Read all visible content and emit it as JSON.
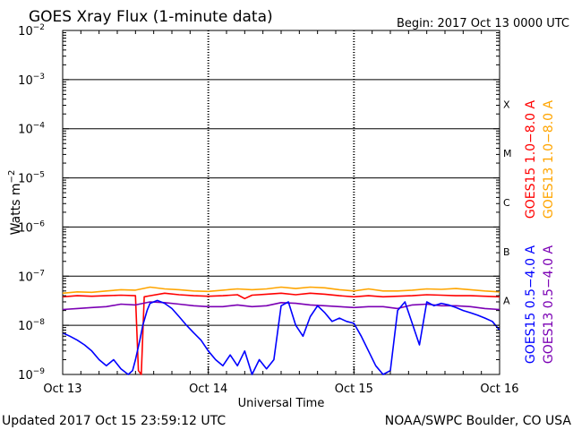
{
  "chart_data": {
    "type": "line",
    "title": "GOES Xray Flux (1-minute data)",
    "begin_label": "Begin:  2017 Oct 13 0000 UTC",
    "ylabel_base": "Watts m",
    "ylabel_exp": "−2",
    "xlabel": "Universal Time",
    "updated": "Updated 2017 Oct 15 23:59:12 UTC",
    "credit": "NOAA/SWPC Boulder, CO USA",
    "yscale": "log",
    "ylim": [
      1e-09,
      0.01
    ],
    "xlim_days": [
      0,
      3
    ],
    "grid": true,
    "x_ticks": [
      {
        "day": 0,
        "label": "Oct 13"
      },
      {
        "day": 1,
        "label": "Oct 14"
      },
      {
        "day": 2,
        "label": "Oct 15"
      },
      {
        "day": 3,
        "label": "Oct 16"
      }
    ],
    "y_ticks": [
      {
        "exp": -2,
        "base": "10",
        "sup": "−2"
      },
      {
        "exp": -3,
        "base": "10",
        "sup": "−3"
      },
      {
        "exp": -4,
        "base": "10",
        "sup": "−4"
      },
      {
        "exp": -5,
        "base": "10",
        "sup": "−5"
      },
      {
        "exp": -6,
        "base": "10",
        "sup": "−6"
      },
      {
        "exp": -7,
        "base": "10",
        "sup": "−7"
      },
      {
        "exp": -8,
        "base": "10",
        "sup": "−8"
      },
      {
        "exp": -9,
        "base": "10",
        "sup": "−9"
      }
    ],
    "flare_classes": [
      {
        "label": "X",
        "exp": -4
      },
      {
        "label": "M",
        "exp": -5
      },
      {
        "label": "C",
        "exp": -6
      },
      {
        "label": "B",
        "exp": -7
      },
      {
        "label": "A",
        "exp": -8
      }
    ],
    "legend_placement": "right, vertical",
    "legend": [
      {
        "label": "GOES15 1.0−8.0 A",
        "color": "#ff0000"
      },
      {
        "label": "GOES13 1.0−8.0 A",
        "color": "#ffa500"
      },
      {
        "label": "GOES15 0.5−4.0 A",
        "color": "#0000ff"
      },
      {
        "label": "GOES13 0.5−4.0 A",
        "color": "#7b00b4"
      }
    ],
    "series": [
      {
        "name": "GOES13 1.0−8.0 A",
        "color": "#ffa500",
        "x": [
          0,
          0.1,
          0.2,
          0.3,
          0.4,
          0.5,
          0.6,
          0.7,
          0.8,
          0.9,
          1.0,
          1.1,
          1.2,
          1.3,
          1.4,
          1.5,
          1.6,
          1.7,
          1.8,
          1.9,
          2.0,
          2.1,
          2.2,
          2.3,
          2.4,
          2.5,
          2.6,
          2.7,
          2.8,
          2.9,
          3.0
        ],
        "y": [
          4.5e-08,
          4.8e-08,
          4.7e-08,
          5e-08,
          5.3e-08,
          5.2e-08,
          6e-08,
          5.5e-08,
          5.3e-08,
          5e-08,
          4.9e-08,
          5.2e-08,
          5.5e-08,
          5.3e-08,
          5.5e-08,
          6e-08,
          5.6e-08,
          6e-08,
          5.8e-08,
          5.3e-08,
          5e-08,
          5.5e-08,
          5e-08,
          5e-08,
          5.2e-08,
          5.5e-08,
          5.4e-08,
          5.6e-08,
          5.3e-08,
          5e-08,
          4.8e-08
        ]
      },
      {
        "name": "GOES15 1.0−8.0 A",
        "color": "#ff0000",
        "x": [
          0,
          0.1,
          0.2,
          0.3,
          0.4,
          0.5,
          0.52,
          0.54,
          0.56,
          0.6,
          0.7,
          0.8,
          0.9,
          1.0,
          1.1,
          1.2,
          1.25,
          1.3,
          1.4,
          1.5,
          1.6,
          1.7,
          1.8,
          1.9,
          2.0,
          2.1,
          2.2,
          2.3,
          2.4,
          2.5,
          2.6,
          2.7,
          2.8,
          2.9,
          3.0
        ],
        "y": [
          3.8e-08,
          4e-08,
          3.9e-08,
          4e-08,
          4.1e-08,
          4e-08,
          1.2e-09,
          1e-09,
          3.8e-08,
          4e-08,
          4.5e-08,
          4.2e-08,
          4e-08,
          3.9e-08,
          4e-08,
          4.2e-08,
          3.5e-08,
          4.1e-08,
          4.3e-08,
          4.5e-08,
          4.2e-08,
          4.5e-08,
          4.3e-08,
          4e-08,
          3.8e-08,
          4e-08,
          3.8e-08,
          3.9e-08,
          4e-08,
          4.2e-08,
          4.1e-08,
          4e-08,
          4e-08,
          3.9e-08,
          3.8e-08
        ]
      },
      {
        "name": "GOES13 0.5−4.0 A",
        "color": "#7b00b4",
        "x": [
          0,
          0.1,
          0.2,
          0.3,
          0.4,
          0.5,
          0.6,
          0.7,
          0.8,
          0.9,
          1.0,
          1.1,
          1.2,
          1.3,
          1.4,
          1.5,
          1.6,
          1.7,
          1.8,
          1.9,
          2.0,
          2.1,
          2.2,
          2.3,
          2.4,
          2.5,
          2.6,
          2.7,
          2.8,
          2.9,
          3.0
        ],
        "y": [
          2.1e-08,
          2.2e-08,
          2.3e-08,
          2.4e-08,
          2.7e-08,
          2.6e-08,
          3e-08,
          2.9e-08,
          2.7e-08,
          2.5e-08,
          2.4e-08,
          2.4e-08,
          2.6e-08,
          2.4e-08,
          2.5e-08,
          2.9e-08,
          2.8e-08,
          2.6e-08,
          2.5e-08,
          2.4e-08,
          2.3e-08,
          2.4e-08,
          2.4e-08,
          2.2e-08,
          2.6e-08,
          2.7e-08,
          2.5e-08,
          2.5e-08,
          2.4e-08,
          2.2e-08,
          2.1e-08
        ]
      },
      {
        "name": "GOES15 0.5−4.0 A",
        "color": "#0000ff",
        "x": [
          0,
          0.05,
          0.1,
          0.15,
          0.2,
          0.25,
          0.3,
          0.35,
          0.4,
          0.45,
          0.48,
          0.5,
          0.53,
          0.55,
          0.58,
          0.6,
          0.65,
          0.7,
          0.75,
          0.8,
          0.85,
          0.9,
          0.95,
          1.0,
          1.05,
          1.1,
          1.15,
          1.2,
          1.25,
          1.3,
          1.35,
          1.4,
          1.45,
          1.5,
          1.55,
          1.6,
          1.65,
          1.7,
          1.75,
          1.8,
          1.85,
          1.9,
          1.95,
          2.0,
          2.05,
          2.1,
          2.15,
          2.2,
          2.25,
          2.3,
          2.35,
          2.4,
          2.45,
          2.5,
          2.55,
          2.6,
          2.65,
          2.7,
          2.75,
          2.8,
          2.85,
          2.9,
          2.95,
          3.0
        ],
        "y": [
          7e-09,
          6e-09,
          5e-09,
          4e-09,
          3e-09,
          2e-09,
          1.5e-09,
          2e-09,
          1.3e-09,
          1e-09,
          1.2e-09,
          2e-09,
          5e-09,
          1e-08,
          2e-08,
          2.8e-08,
          3.2e-08,
          2.8e-08,
          2.2e-08,
          1.5e-08,
          1e-08,
          7e-09,
          5e-09,
          3e-09,
          2e-09,
          1.5e-09,
          2.5e-09,
          1.5e-09,
          3e-09,
          1e-09,
          2e-09,
          1.3e-09,
          2e-09,
          2.5e-08,
          3e-08,
          1e-08,
          6e-09,
          1.5e-08,
          2.5e-08,
          1.8e-08,
          1.2e-08,
          1.4e-08,
          1.2e-08,
          1.1e-08,
          6e-09,
          3e-09,
          1.5e-09,
          1e-09,
          1.2e-09,
          2e-08,
          3e-08,
          1.1e-08,
          4e-09,
          3e-08,
          2.5e-08,
          2.8e-08,
          2.6e-08,
          2.3e-08,
          2e-08,
          1.8e-08,
          1.6e-08,
          1.4e-08,
          1.2e-08,
          8e-09
        ]
      }
    ]
  }
}
